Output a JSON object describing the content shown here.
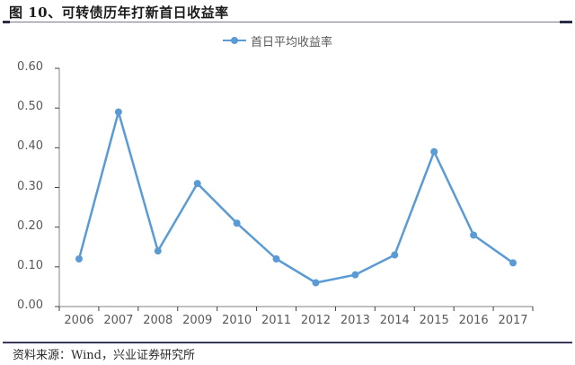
{
  "title": "图 10、可转债历年打新首日收益率",
  "source": "资料来源：Wind，兴业证券研究所",
  "colors": {
    "series": "#5b9bd5",
    "axis": "#808080",
    "text": "#595959",
    "rule": "#3a3a5c"
  },
  "chart_data": {
    "type": "line",
    "title": "图 10、可转债历年打新首日收益率",
    "xlabel": "",
    "ylabel": "",
    "categories": [
      "2006",
      "2007",
      "2008",
      "2009",
      "2010",
      "2011",
      "2012",
      "2013",
      "2014",
      "2015",
      "2016",
      "2017"
    ],
    "series": [
      {
        "name": "首日平均收益率",
        "values": [
          0.12,
          0.49,
          0.14,
          0.31,
          0.21,
          0.12,
          0.06,
          0.08,
          0.13,
          0.39,
          0.18,
          0.11
        ],
        "marker": "circle",
        "color": "#5b9bd5"
      }
    ],
    "ylim": [
      0,
      0.6
    ],
    "yticks": [
      "0.00",
      "0.10",
      "0.20",
      "0.30",
      "0.40",
      "0.50",
      "0.60"
    ],
    "grid": false,
    "legend_position": "top-center"
  },
  "legend": {
    "items": [
      {
        "label": "首日平均收益率"
      }
    ]
  }
}
